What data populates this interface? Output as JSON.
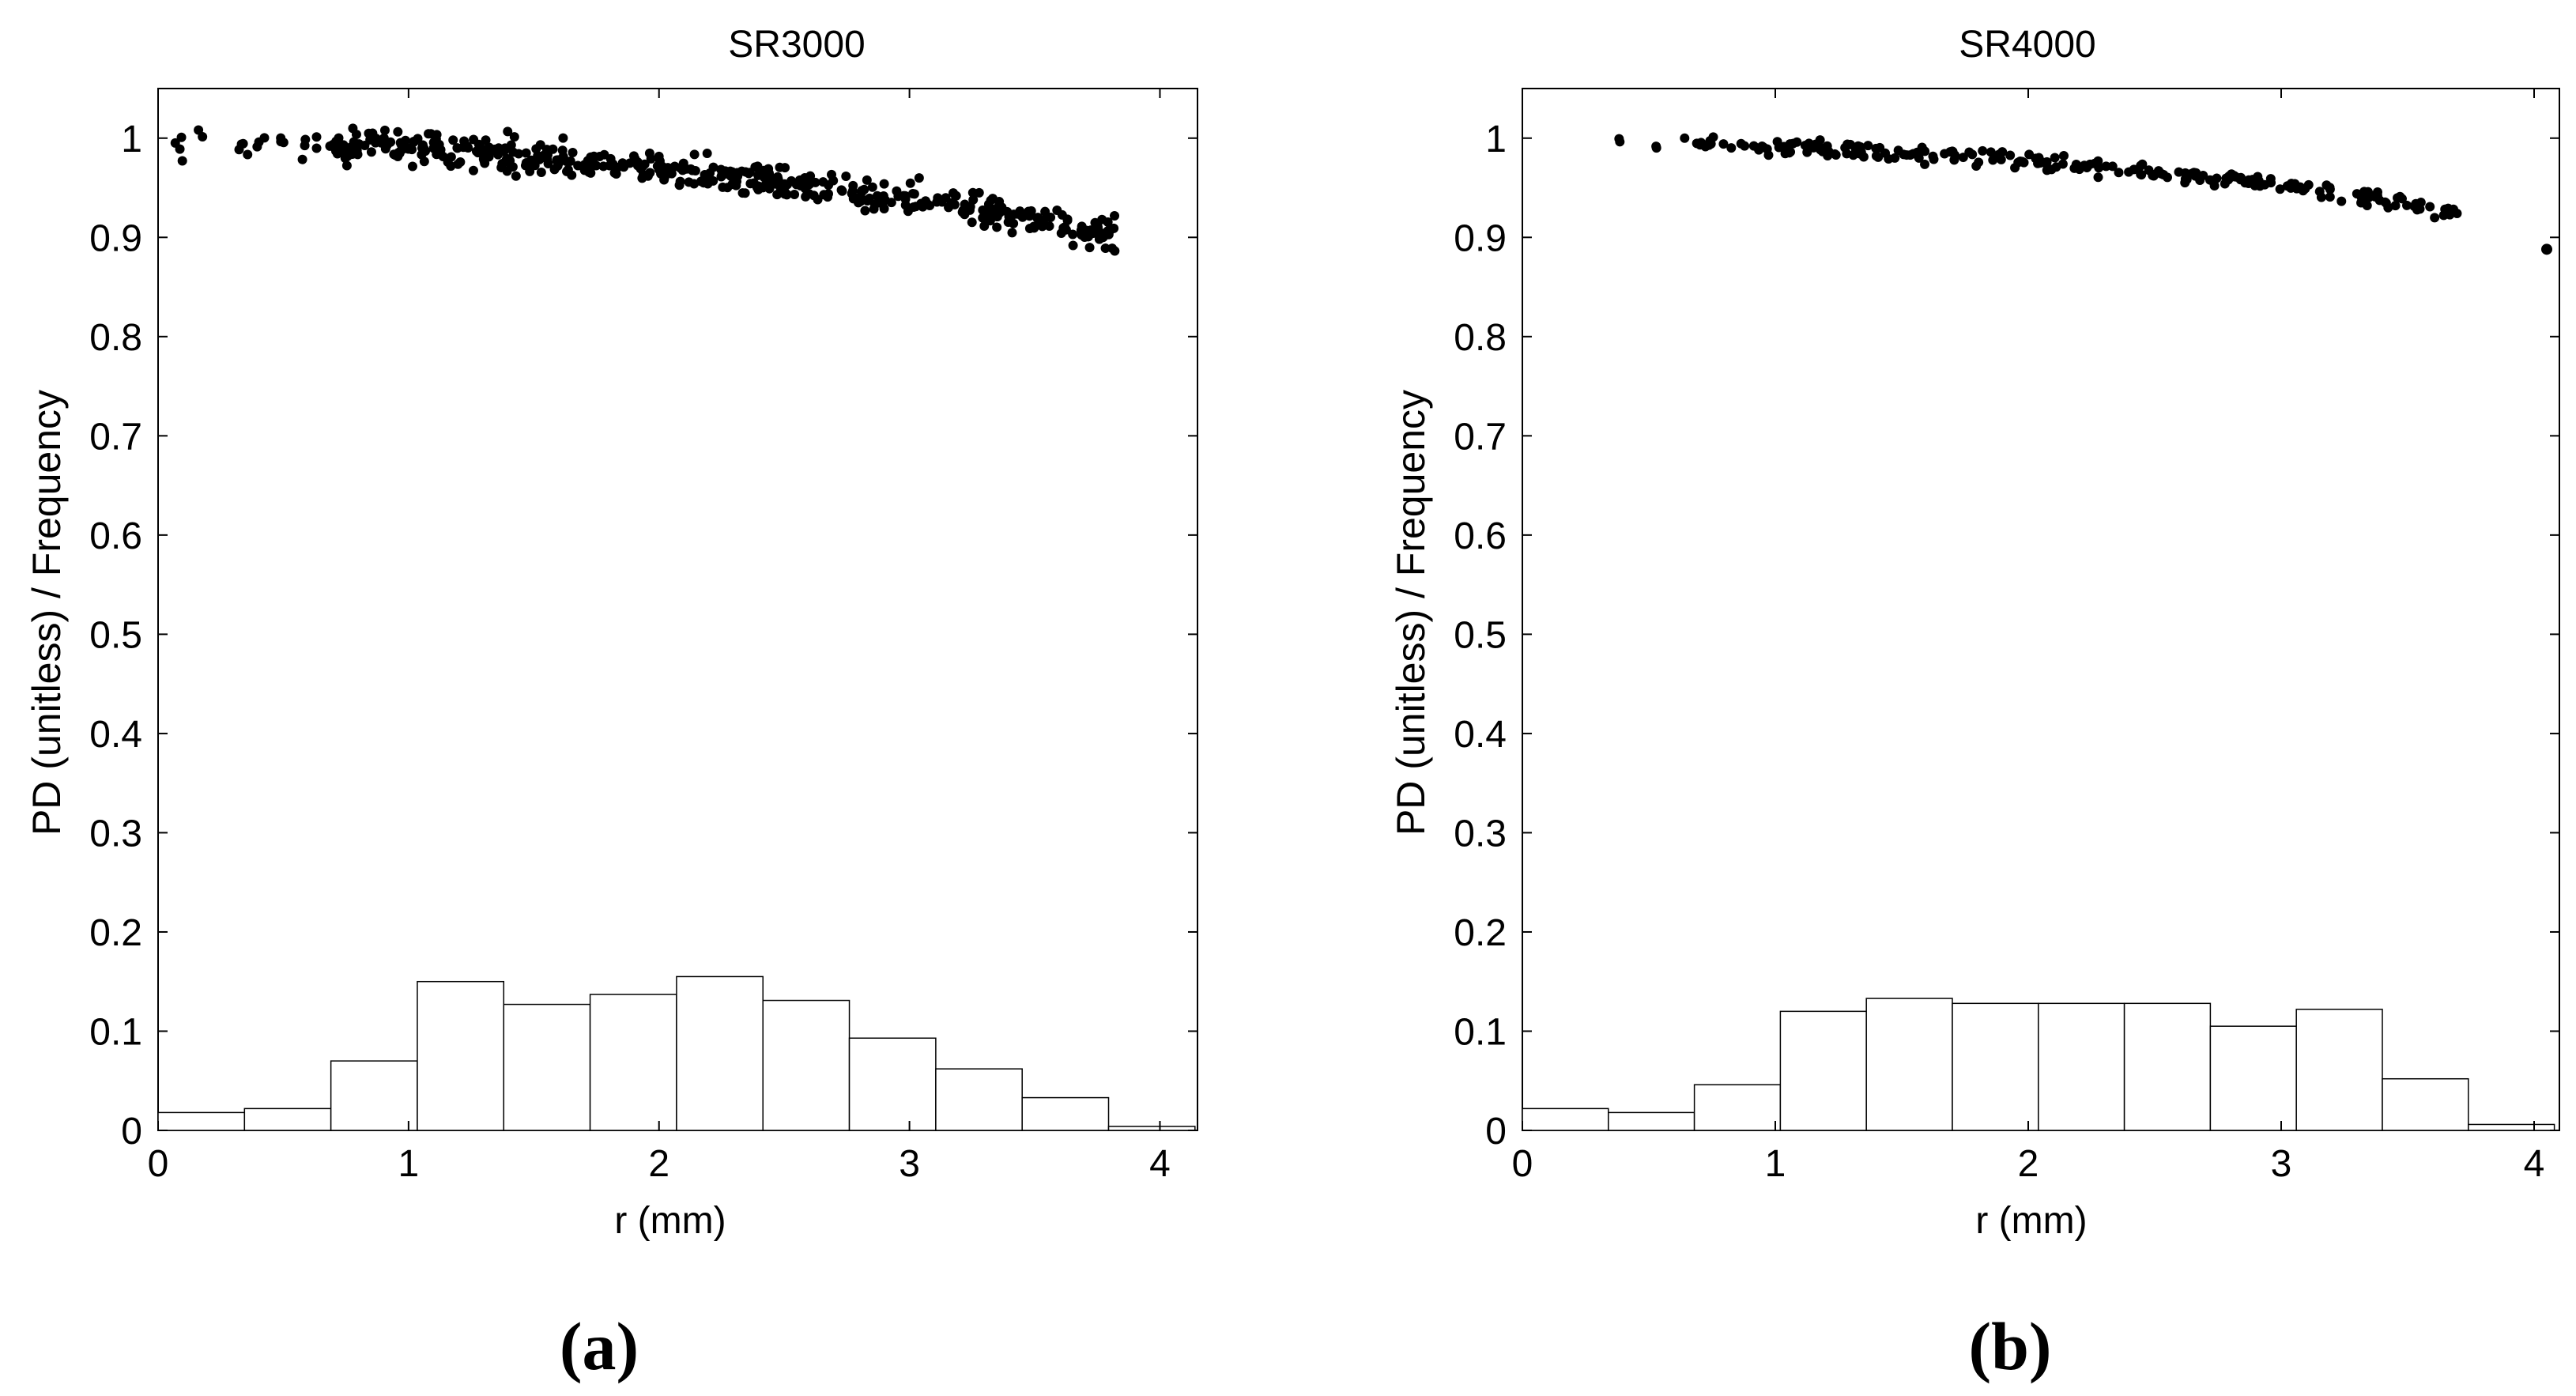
{
  "chart_data": [
    {
      "type": "scatter+histogram",
      "panel_label": "(a)",
      "title": "SR3000",
      "xlabel": "r (mm)",
      "ylabel": "PD (unitless) / Frequency",
      "xlim": [
        0,
        4.15
      ],
      "ylim": [
        0,
        1.05
      ],
      "xticks": [
        "0",
        "1",
        "2",
        "3",
        "4"
      ],
      "yticks": [
        "0",
        "0.1",
        "0.2",
        "0.3",
        "0.4",
        "0.5",
        "0.6",
        "0.7",
        "0.8",
        "0.9",
        "1"
      ],
      "grid": false,
      "histogram": {
        "bin_edges": [
          0,
          0.345,
          0.69,
          1.035,
          1.38,
          1.725,
          2.07,
          2.415,
          2.76,
          3.105,
          3.45,
          3.795,
          4.14
        ],
        "values": [
          0.018,
          0.022,
          0.07,
          0.15,
          0.127,
          0.137,
          0.155,
          0.131,
          0.093,
          0.062,
          0.033,
          0.004
        ]
      },
      "scatter_trend": {
        "x_range": [
          0.02,
          3.82
        ],
        "points": [
          [
            0.0,
            0.997
          ],
          [
            0.5,
            0.995
          ],
          [
            1.0,
            0.99
          ],
          [
            1.5,
            0.98
          ],
          [
            2.0,
            0.97
          ],
          [
            2.5,
            0.955
          ],
          [
            3.0,
            0.94
          ],
          [
            3.5,
            0.918
          ],
          [
            3.82,
            0.9
          ]
        ],
        "spread": 0.012,
        "sparse_below_x": 0.7,
        "n_points": 560
      }
    },
    {
      "type": "scatter+histogram",
      "panel_label": "(b)",
      "title": "SR4000",
      "xlabel": "r (mm)",
      "ylabel": "PD (unitless) / Frequency",
      "xlim": [
        0,
        4.1
      ],
      "ylim": [
        0,
        1.05
      ],
      "xticks": [
        "0",
        "1",
        "2",
        "3",
        "4"
      ],
      "yticks": [
        "0",
        "0.1",
        "0.2",
        "0.3",
        "0.4",
        "0.5",
        "0.6",
        "0.7",
        "0.8",
        "0.9",
        "1"
      ],
      "grid": false,
      "histogram": {
        "bin_edges": [
          0,
          0.34,
          0.68,
          1.02,
          1.36,
          1.7,
          2.04,
          2.38,
          2.72,
          3.06,
          3.4,
          3.74,
          4.08
        ],
        "values": [
          0.022,
          0.018,
          0.046,
          0.12,
          0.133,
          0.128,
          0.128,
          0.128,
          0.105,
          0.122,
          0.052,
          0.006
        ]
      },
      "scatter_trend": {
        "x_range": [
          0.25,
          3.7
        ],
        "points": [
          [
            0.0,
            1.0
          ],
          [
            0.5,
            0.997
          ],
          [
            1.0,
            0.992
          ],
          [
            1.5,
            0.985
          ],
          [
            2.0,
            0.977
          ],
          [
            2.5,
            0.965
          ],
          [
            3.0,
            0.952
          ],
          [
            3.5,
            0.935
          ],
          [
            3.7,
            0.925
          ]
        ],
        "spread": 0.006,
        "sparse_below_x": 0.7,
        "n_points": 260,
        "outliers": [
          [
            4.05,
            0.888
          ]
        ]
      }
    }
  ]
}
